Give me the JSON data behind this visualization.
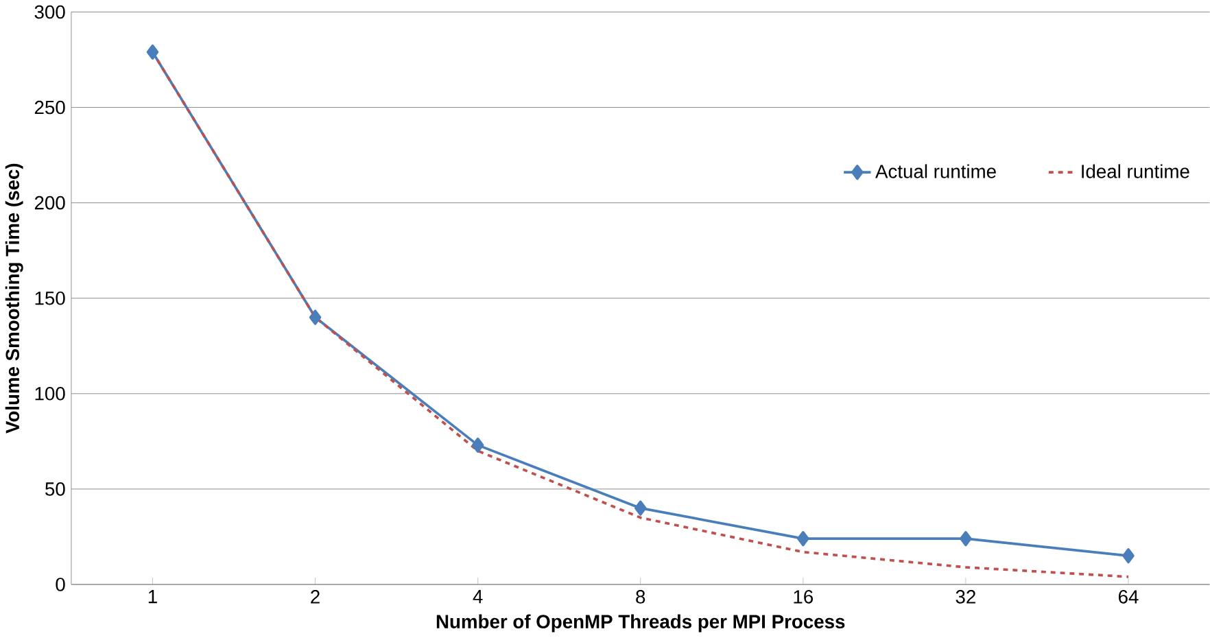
{
  "chart_data": {
    "type": "line",
    "xlabel": "Number of OpenMP Threads per MPI Process",
    "ylabel": "Volume Smoothing Time (sec)",
    "categories": [
      "1",
      "2",
      "4",
      "8",
      "16",
      "32",
      "64"
    ],
    "ylim": [
      0,
      300
    ],
    "yticks": [
      0,
      50,
      100,
      150,
      200,
      250,
      300
    ],
    "grid": "y",
    "legend": "right",
    "series": [
      {
        "name": "Actual runtime",
        "color": "#4a7ebb",
        "marker": "diamond",
        "line_style": "solid",
        "values": [
          279,
          140,
          73,
          40,
          24,
          24,
          15
        ]
      },
      {
        "name": "Ideal runtime",
        "color": "#c0504d",
        "marker": "none",
        "line_style": "dashed",
        "values": [
          279,
          140,
          70,
          35,
          17,
          9,
          4
        ]
      }
    ]
  }
}
